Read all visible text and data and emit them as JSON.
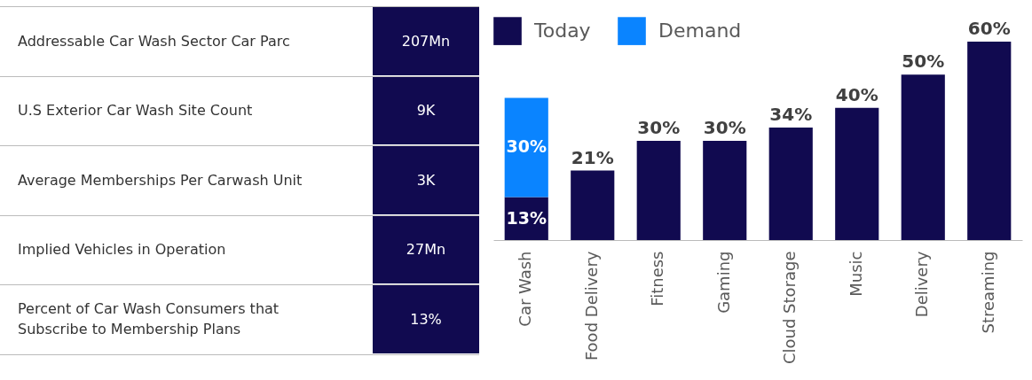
{
  "chart_data": [
    {
      "type": "other",
      "annotations": [
        "Addressable Car Wash Sector Car Parc",
        "207Mn",
        "U.S Exterior Car Wash Site Count",
        "9K",
        "Average Memberships Per Carwash Unit",
        "3K",
        "Implied Vehicles in Operation",
        "27Mn",
        "Percent of Car Wash Consumers that Subscribe to Membership Plans",
        "13%"
      ]
    },
    {
      "type": "bar",
      "stacked": true,
      "legend": "top left",
      "tick_labels": "x",
      "ylim": [
        0,
        60
      ],
      "categories": [
        "Car Wash",
        "Food Delivery",
        "Fitness",
        "Gaming",
        "Cloud Storage",
        "Music",
        "Delivery",
        "Streaming"
      ],
      "series": [
        {
          "name": "Today",
          "color": "#110a50",
          "values": [
            13,
            21,
            30,
            30,
            34,
            40,
            50,
            60
          ],
          "value_labels": [
            "13%",
            "21%",
            "30%",
            "30%",
            "34%",
            "40%",
            "50%",
            "60%"
          ]
        },
        {
          "name": "Demand",
          "color": "#0a84ff",
          "values": [
            30,
            null,
            null,
            null,
            null,
            null,
            null,
            null
          ],
          "value_labels": [
            "30%",
            null,
            null,
            null,
            null,
            null,
            null,
            null
          ]
        }
      ]
    }
  ]
}
